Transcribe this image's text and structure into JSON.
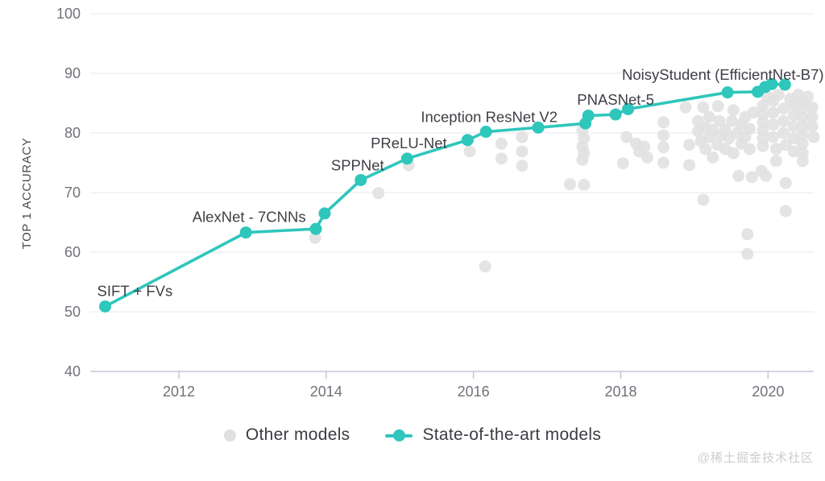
{
  "watermark": "@稀土掘金技术社区",
  "legend": [
    {
      "label": "Other models",
      "marker": "dot",
      "color": "#e0e0e0"
    },
    {
      "label": "State-of-the-art models",
      "marker": "line-dot",
      "color": "#2fc6bc"
    }
  ],
  "colors": {
    "sota": "#2fc6bc",
    "other": "#e0e0e0",
    "grid": "#ececf3",
    "axis_line": "#c5c7de",
    "tick_text": "#71717a",
    "label_text": "#3f3f46",
    "axis_title": "#4a4a52"
  },
  "chart_data": {
    "type": "scatter",
    "title": "",
    "xlabel": "",
    "ylabel": "TOP 1 ACCURACY",
    "x_ticks": [
      2012,
      2014,
      2016,
      2018,
      2020
    ],
    "y_ticks": [
      40,
      50,
      60,
      70,
      80,
      90,
      100
    ],
    "xlim": [
      2010.797,
      2020.62
    ],
    "ylim": [
      40,
      100
    ],
    "grid": true,
    "legend_position": "bottom",
    "series": [
      {
        "name": "Other models",
        "type": "scatter",
        "color": "#e0e0e0",
        "points": [
          [
            2013.85,
            62.4
          ],
          [
            2014.71,
            69.9
          ],
          [
            2015.12,
            74.6
          ],
          [
            2015.95,
            76.9
          ],
          [
            2016.16,
            57.6
          ],
          [
            2016.38,
            78.2
          ],
          [
            2016.38,
            75.7
          ],
          [
            2016.66,
            79.3
          ],
          [
            2016.66,
            76.9
          ],
          [
            2016.66,
            74.5
          ],
          [
            2017.48,
            80.4
          ],
          [
            2017.5,
            79.1
          ],
          [
            2017.48,
            77.7
          ],
          [
            2017.5,
            76.6
          ],
          [
            2017.48,
            75.5
          ],
          [
            2017.31,
            71.4
          ],
          [
            2017.5,
            71.3
          ],
          [
            2018.03,
            74.9
          ],
          [
            2018.08,
            79.3
          ],
          [
            2018.21,
            78.2
          ],
          [
            2018.25,
            76.9
          ],
          [
            2018.32,
            77.7
          ],
          [
            2018.36,
            75.9
          ],
          [
            2018.58,
            81.8
          ],
          [
            2018.58,
            79.6
          ],
          [
            2018.58,
            77.6
          ],
          [
            2018.58,
            75.0
          ],
          [
            2018.88,
            84.3
          ],
          [
            2018.93,
            78.0
          ],
          [
            2018.93,
            74.6
          ],
          [
            2019.05,
            82.0
          ],
          [
            2019.05,
            80.3
          ],
          [
            2019.09,
            78.6
          ],
          [
            2019.12,
            84.3
          ],
          [
            2019.12,
            68.8
          ],
          [
            2019.15,
            80.9
          ],
          [
            2019.15,
            77.3
          ],
          [
            2019.2,
            82.7
          ],
          [
            2019.2,
            79.3
          ],
          [
            2019.25,
            80.5
          ],
          [
            2019.25,
            75.9
          ],
          [
            2019.31,
            78.0
          ],
          [
            2019.32,
            84.5
          ],
          [
            2019.34,
            82.0
          ],
          [
            2019.36,
            79.6
          ],
          [
            2019.42,
            80.5
          ],
          [
            2019.42,
            77.3
          ],
          [
            2019.47,
            79.1
          ],
          [
            2019.51,
            82.0
          ],
          [
            2019.53,
            83.8
          ],
          [
            2019.53,
            76.6
          ],
          [
            2019.58,
            80.0
          ],
          [
            2019.6,
            72.8
          ],
          [
            2019.64,
            81.4
          ],
          [
            2019.64,
            78.2
          ],
          [
            2019.69,
            82.7
          ],
          [
            2019.69,
            79.3
          ],
          [
            2019.72,
            63.0
          ],
          [
            2019.72,
            59.7
          ],
          [
            2019.75,
            80.7
          ],
          [
            2019.75,
            77.3
          ],
          [
            2019.78,
            72.6
          ],
          [
            2019.8,
            83.4
          ],
          [
            2019.91,
            73.6
          ],
          [
            2019.93,
            84.6
          ],
          [
            2019.93,
            83.1
          ],
          [
            2019.93,
            81.8
          ],
          [
            2019.93,
            80.4
          ],
          [
            2019.93,
            79.1
          ],
          [
            2019.93,
            77.8
          ],
          [
            2019.97,
            72.8
          ],
          [
            2019.99,
            86.1
          ],
          [
            2020.07,
            85.4
          ],
          [
            2020.07,
            83.4
          ],
          [
            2020.07,
            81.4
          ],
          [
            2020.07,
            79.3
          ],
          [
            2020.11,
            77.3
          ],
          [
            2020.11,
            75.3
          ],
          [
            2020.14,
            86.4
          ],
          [
            2020.21,
            84.1
          ],
          [
            2020.21,
            82.0
          ],
          [
            2020.21,
            80.0
          ],
          [
            2020.24,
            78.0
          ],
          [
            2020.24,
            71.6
          ],
          [
            2020.24,
            66.9
          ],
          [
            2020.3,
            85.7
          ],
          [
            2020.35,
            84.7
          ],
          [
            2020.35,
            83.0
          ],
          [
            2020.35,
            81.1
          ],
          [
            2020.35,
            79.1
          ],
          [
            2020.35,
            76.9
          ],
          [
            2020.41,
            86.4
          ],
          [
            2020.47,
            85.4
          ],
          [
            2020.47,
            84.1
          ],
          [
            2020.47,
            82.6
          ],
          [
            2020.47,
            81.1
          ],
          [
            2020.47,
            79.7
          ],
          [
            2020.47,
            78.2
          ],
          [
            2020.47,
            76.6
          ],
          [
            2020.47,
            75.3
          ],
          [
            2020.54,
            86.1
          ],
          [
            2020.6,
            84.3
          ],
          [
            2020.6,
            82.7
          ],
          [
            2020.6,
            81.1
          ],
          [
            2020.62,
            79.3
          ]
        ]
      },
      {
        "name": "State-of-the-art models",
        "type": "line",
        "color": "#2fc6bc",
        "points": [
          {
            "x": 2011.0,
            "y": 50.9,
            "label": "SIFT + FVs",
            "anchor": "start",
            "dx": -10,
            "dy": -13
          },
          {
            "x": 2012.91,
            "y": 63.3,
            "label": "AlexNet - 7CNNs",
            "anchor": "middle",
            "dx": 4,
            "dy": -13
          },
          {
            "x": 2013.86,
            "y": 63.9
          },
          {
            "x": 2013.98,
            "y": 66.5
          },
          {
            "x": 2014.47,
            "y": 72.1,
            "label": "SPPNet",
            "anchor": "middle",
            "dx": -4,
            "dy": -12
          },
          {
            "x": 2015.1,
            "y": 75.7,
            "label": "PReLU-Net",
            "anchor": "middle",
            "dx": 2,
            "dy": -13
          },
          {
            "x": 2015.92,
            "y": 78.8
          },
          {
            "x": 2016.17,
            "y": 80.2,
            "label": "Inception ResNet V2",
            "anchor": "middle",
            "dx": 4,
            "dy": -12
          },
          {
            "x": 2016.88,
            "y": 80.9
          },
          {
            "x": 2017.52,
            "y": 81.6
          },
          {
            "x": 2017.56,
            "y": 82.9
          },
          {
            "x": 2017.93,
            "y": 83.1,
            "label": "PNASNet-5",
            "anchor": "middle",
            "dx": 0,
            "dy": -12
          },
          {
            "x": 2018.1,
            "y": 84.0
          },
          {
            "x": 2019.45,
            "y": 86.8
          },
          {
            "x": 2019.86,
            "y": 86.9,
            "label": "NoisyStudent (EfficientNet-B7)",
            "anchor": "end",
            "dx": 82,
            "dy": -15
          },
          {
            "x": 2019.96,
            "y": 87.7
          },
          {
            "x": 2020.05,
            "y": 88.2
          },
          {
            "x": 2020.23,
            "y": 88.1
          }
        ]
      }
    ]
  }
}
